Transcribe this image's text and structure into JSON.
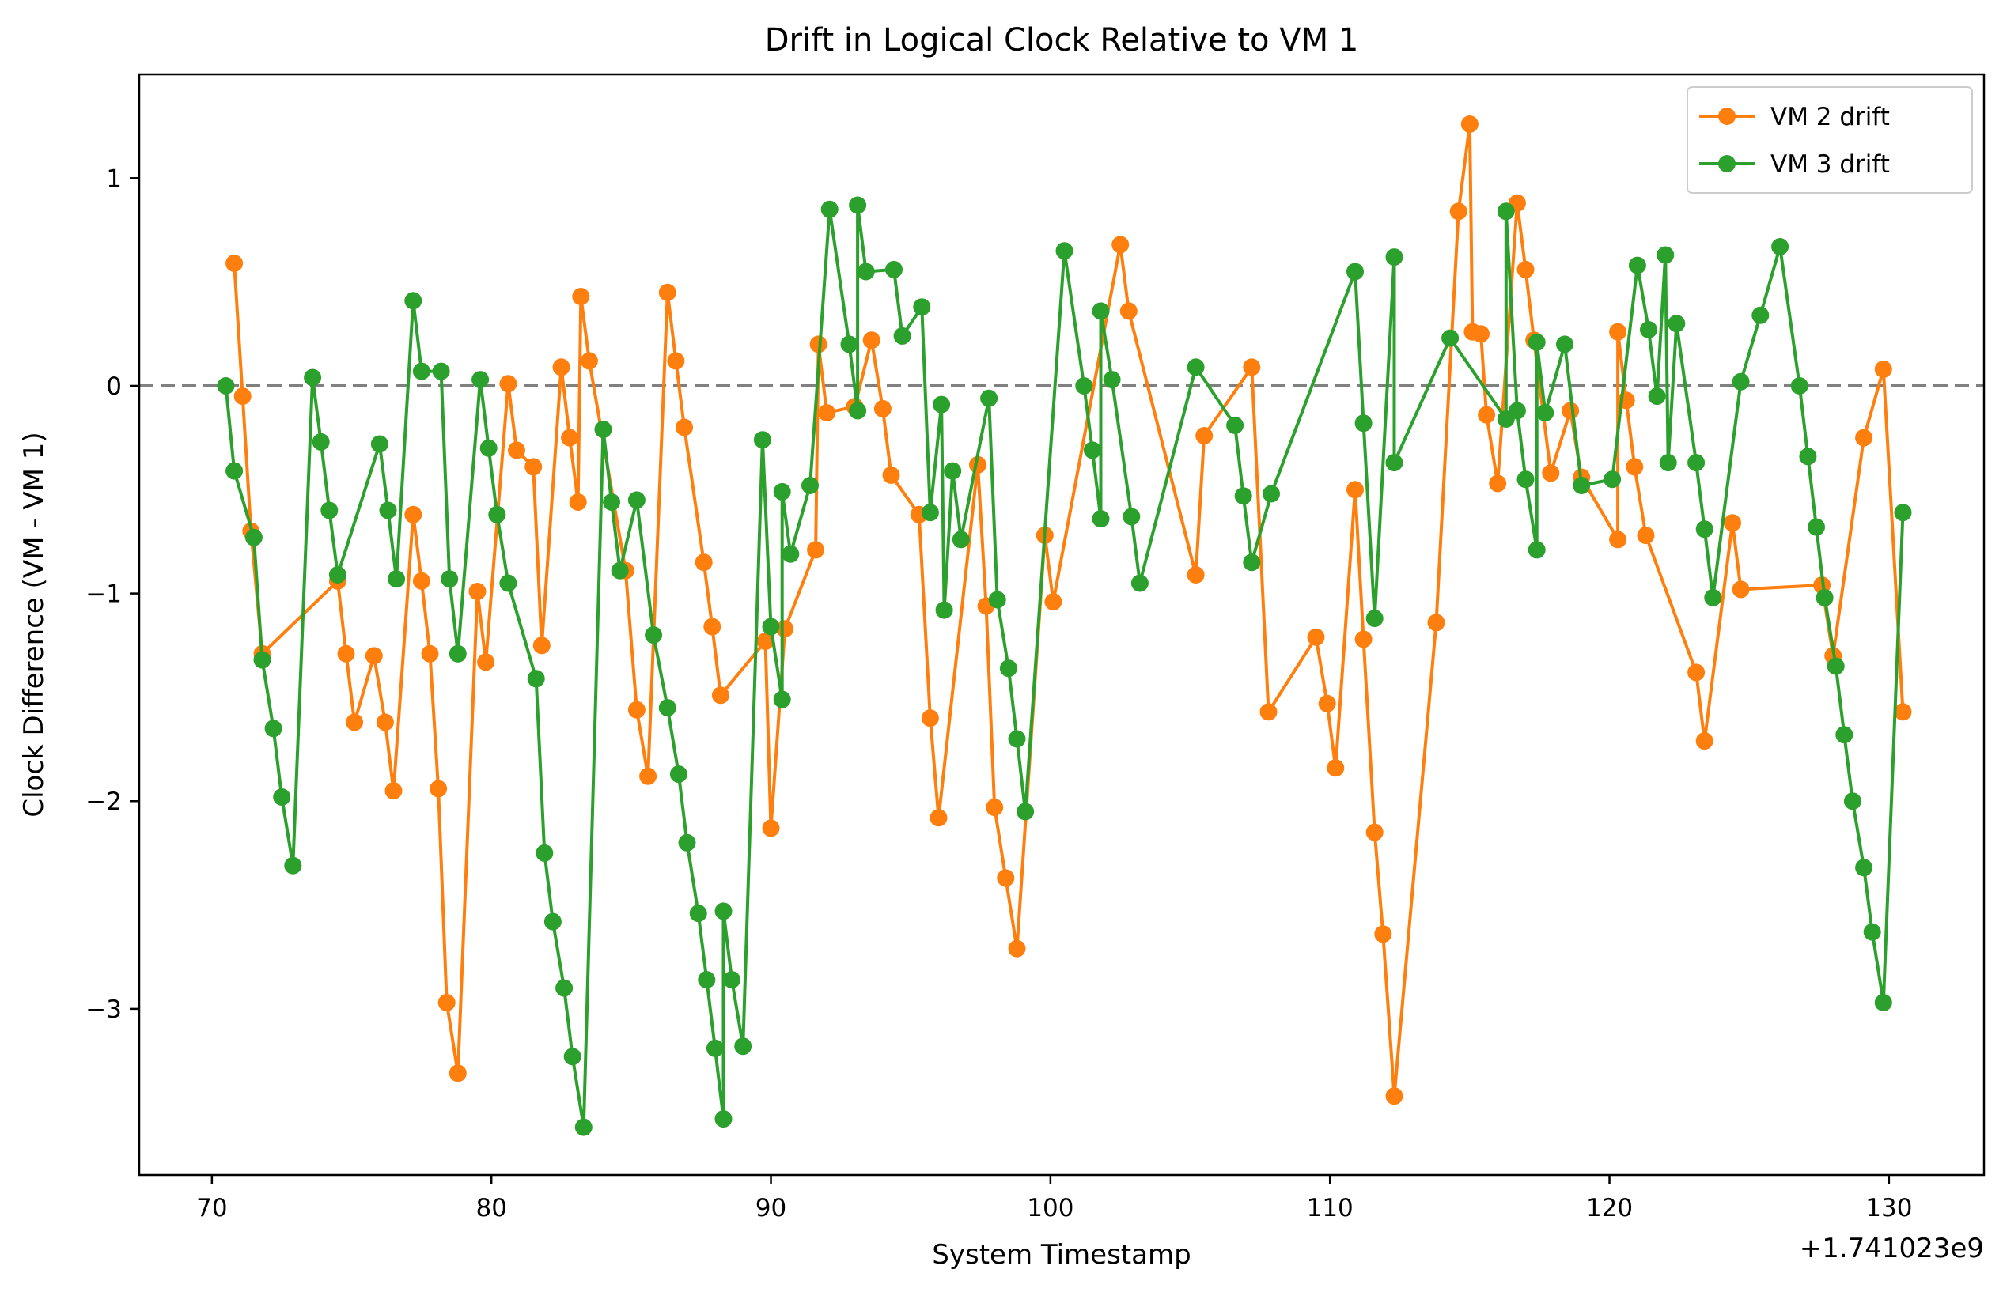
{
  "chart_data": {
    "type": "line",
    "title": "Drift in Logical Clock Relative to VM 1",
    "xlabel": "System Timestamp",
    "ylabel": "Clock Difference (VM - VM 1)",
    "x_offset_label": "+1.741023e9",
    "xlim": [
      67.4,
      133.4
    ],
    "ylim": [
      -3.8,
      1.5
    ],
    "x_ticks": [
      70,
      80,
      90,
      100,
      110,
      120,
      130
    ],
    "x_tick_labels": [
      "70",
      "80",
      "90",
      "100",
      "110",
      "120",
      "130"
    ],
    "y_ticks": [
      -3,
      -2,
      -1,
      0,
      1
    ],
    "y_tick_labels": [
      "−3",
      "−2",
      "−1",
      "0",
      "1"
    ],
    "grid": false,
    "legend_position": "top-right",
    "reference_line": {
      "y": 0,
      "style": "dashed",
      "color": "#808080"
    },
    "series": [
      {
        "name": "VM 2 drift",
        "color": "#ff7f0e",
        "points": [
          [
            70.8,
            0.59
          ],
          [
            71.1,
            -0.05
          ],
          [
            71.4,
            -0.7
          ],
          [
            71.8,
            -1.29
          ],
          [
            74.5,
            -0.94
          ],
          [
            74.8,
            -1.29
          ],
          [
            75.1,
            -1.62
          ],
          [
            75.8,
            -1.3
          ],
          [
            76.2,
            -1.62
          ],
          [
            76.5,
            -1.95
          ],
          [
            77.2,
            -0.62
          ],
          [
            77.5,
            -0.94
          ],
          [
            77.8,
            -1.29
          ],
          [
            78.1,
            -1.94
          ],
          [
            78.4,
            -2.97
          ],
          [
            78.8,
            -3.31
          ],
          [
            79.5,
            -0.99
          ],
          [
            79.8,
            -1.33
          ],
          [
            80.6,
            0.01
          ],
          [
            80.9,
            -0.31
          ],
          [
            81.5,
            -0.39
          ],
          [
            81.8,
            -1.25
          ],
          [
            82.5,
            0.09
          ],
          [
            82.8,
            -0.25
          ],
          [
            83.1,
            -0.56
          ],
          [
            83.2,
            0.43
          ],
          [
            83.5,
            0.12
          ],
          [
            84.8,
            -0.89
          ],
          [
            85.2,
            -1.56
          ],
          [
            85.6,
            -1.88
          ],
          [
            86.3,
            0.45
          ],
          [
            86.6,
            0.12
          ],
          [
            86.9,
            -0.2
          ],
          [
            87.6,
            -0.85
          ],
          [
            87.9,
            -1.16
          ],
          [
            88.2,
            -1.49
          ],
          [
            89.8,
            -1.23
          ],
          [
            90.0,
            -2.13
          ],
          [
            90.5,
            -1.17
          ],
          [
            91.6,
            -0.79
          ],
          [
            91.7,
            0.2
          ],
          [
            92.0,
            -0.13
          ],
          [
            93.0,
            -0.1
          ],
          [
            93.6,
            0.22
          ],
          [
            94.0,
            -0.11
          ],
          [
            94.3,
            -0.43
          ],
          [
            95.3,
            -0.62
          ],
          [
            95.7,
            -1.6
          ],
          [
            96.0,
            -2.08
          ],
          [
            97.4,
            -0.38
          ],
          [
            97.7,
            -1.06
          ],
          [
            98.0,
            -2.03
          ],
          [
            98.4,
            -2.37
          ],
          [
            98.8,
            -2.71
          ],
          [
            99.8,
            -0.72
          ],
          [
            100.1,
            -1.04
          ],
          [
            102.5,
            0.68
          ],
          [
            102.8,
            0.36
          ],
          [
            105.2,
            -0.91
          ],
          [
            105.5,
            -0.24
          ],
          [
            107.2,
            0.09
          ],
          [
            107.8,
            -1.57
          ],
          [
            109.5,
            -1.21
          ],
          [
            109.9,
            -1.53
          ],
          [
            110.2,
            -1.84
          ],
          [
            110.9,
            -0.5
          ],
          [
            111.2,
            -1.22
          ],
          [
            111.6,
            -2.15
          ],
          [
            111.9,
            -2.64
          ],
          [
            112.3,
            -3.42
          ],
          [
            113.8,
            -1.14
          ],
          [
            114.6,
            0.84
          ],
          [
            115.0,
            1.26
          ],
          [
            115.1,
            0.26
          ],
          [
            115.4,
            0.25
          ],
          [
            115.6,
            -0.14
          ],
          [
            116.0,
            -0.47
          ],
          [
            116.7,
            0.88
          ],
          [
            117.0,
            0.56
          ],
          [
            117.3,
            0.22
          ],
          [
            117.9,
            -0.42
          ],
          [
            118.6,
            -0.12
          ],
          [
            119.0,
            -0.44
          ],
          [
            120.3,
            -0.74
          ],
          [
            120.3,
            0.26
          ],
          [
            120.6,
            -0.07
          ],
          [
            120.9,
            -0.39
          ],
          [
            121.3,
            -0.72
          ],
          [
            123.1,
            -1.38
          ],
          [
            123.4,
            -1.71
          ],
          [
            124.4,
            -0.66
          ],
          [
            124.7,
            -0.98
          ],
          [
            127.6,
            -0.96
          ],
          [
            128.0,
            -1.3
          ],
          [
            129.1,
            -0.25
          ],
          [
            129.8,
            0.08
          ],
          [
            130.5,
            -1.57
          ]
        ]
      },
      {
        "name": "VM 3 drift",
        "color": "#2ca02c",
        "points": [
          [
            70.5,
            0.0
          ],
          [
            70.8,
            -0.41
          ],
          [
            71.5,
            -0.73
          ],
          [
            71.8,
            -1.32
          ],
          [
            72.2,
            -1.65
          ],
          [
            72.5,
            -1.98
          ],
          [
            72.9,
            -2.31
          ],
          [
            73.6,
            0.04
          ],
          [
            73.9,
            -0.27
          ],
          [
            74.2,
            -0.6
          ],
          [
            74.5,
            -0.91
          ],
          [
            76.0,
            -0.28
          ],
          [
            76.3,
            -0.6
          ],
          [
            76.6,
            -0.93
          ],
          [
            77.2,
            0.41
          ],
          [
            77.5,
            0.07
          ],
          [
            78.2,
            0.07
          ],
          [
            78.5,
            -0.93
          ],
          [
            78.8,
            -1.29
          ],
          [
            79.6,
            0.03
          ],
          [
            79.9,
            -0.3
          ],
          [
            80.2,
            -0.62
          ],
          [
            80.6,
            -0.95
          ],
          [
            81.6,
            -1.41
          ],
          [
            81.9,
            -2.25
          ],
          [
            82.2,
            -2.58
          ],
          [
            82.6,
            -2.9
          ],
          [
            82.9,
            -3.23
          ],
          [
            83.3,
            -3.57
          ],
          [
            84.0,
            -0.21
          ],
          [
            84.3,
            -0.56
          ],
          [
            84.6,
            -0.89
          ],
          [
            85.2,
            -0.55
          ],
          [
            85.8,
            -1.2
          ],
          [
            86.3,
            -1.55
          ],
          [
            86.7,
            -1.87
          ],
          [
            87.0,
            -2.2
          ],
          [
            87.4,
            -2.54
          ],
          [
            87.7,
            -2.86
          ],
          [
            88.0,
            -3.19
          ],
          [
            88.3,
            -3.53
          ],
          [
            88.3,
            -2.53
          ],
          [
            88.6,
            -2.86
          ],
          [
            89.0,
            -3.18
          ],
          [
            89.7,
            -0.26
          ],
          [
            90.0,
            -1.16
          ],
          [
            90.4,
            -1.51
          ],
          [
            90.4,
            -0.51
          ],
          [
            90.7,
            -0.81
          ],
          [
            91.4,
            -0.48
          ],
          [
            92.1,
            0.85
          ],
          [
            92.8,
            0.2
          ],
          [
            93.1,
            -0.12
          ],
          [
            93.1,
            0.87
          ],
          [
            93.4,
            0.55
          ],
          [
            94.4,
            0.56
          ],
          [
            94.7,
            0.24
          ],
          [
            95.4,
            0.38
          ],
          [
            95.7,
            -0.61
          ],
          [
            96.1,
            -0.09
          ],
          [
            96.2,
            -1.08
          ],
          [
            96.5,
            -0.41
          ],
          [
            96.8,
            -0.74
          ],
          [
            97.8,
            -0.06
          ],
          [
            98.1,
            -1.03
          ],
          [
            98.5,
            -1.36
          ],
          [
            98.8,
            -1.7
          ],
          [
            99.1,
            -2.05
          ],
          [
            100.5,
            0.65
          ],
          [
            101.2,
            0.0
          ],
          [
            101.5,
            -0.31
          ],
          [
            101.8,
            -0.64
          ],
          [
            101.8,
            0.36
          ],
          [
            102.2,
            0.03
          ],
          [
            102.9,
            -0.63
          ],
          [
            103.2,
            -0.95
          ],
          [
            105.2,
            0.09
          ],
          [
            106.6,
            -0.19
          ],
          [
            106.9,
            -0.53
          ],
          [
            107.2,
            -0.85
          ],
          [
            107.9,
            -0.52
          ],
          [
            110.9,
            0.55
          ],
          [
            111.2,
            -0.18
          ],
          [
            111.6,
            -1.12
          ],
          [
            112.3,
            0.62
          ],
          [
            112.3,
            -0.37
          ],
          [
            114.3,
            0.23
          ],
          [
            116.3,
            -0.16
          ],
          [
            116.3,
            0.84
          ],
          [
            116.7,
            -0.12
          ],
          [
            117.0,
            -0.45
          ],
          [
            117.4,
            -0.79
          ],
          [
            117.4,
            0.21
          ],
          [
            117.7,
            -0.13
          ],
          [
            118.4,
            0.2
          ],
          [
            119.0,
            -0.48
          ],
          [
            120.1,
            -0.45
          ],
          [
            121.0,
            0.58
          ],
          [
            121.4,
            0.27
          ],
          [
            121.7,
            -0.05
          ],
          [
            122.0,
            0.63
          ],
          [
            122.1,
            -0.37
          ],
          [
            122.4,
            0.3
          ],
          [
            123.1,
            -0.37
          ],
          [
            123.4,
            -0.69
          ],
          [
            123.7,
            -1.02
          ],
          [
            124.7,
            0.02
          ],
          [
            125.4,
            0.34
          ],
          [
            126.1,
            0.67
          ],
          [
            126.8,
            0.0
          ],
          [
            127.1,
            -0.34
          ],
          [
            127.4,
            -0.68
          ],
          [
            127.7,
            -1.02
          ],
          [
            128.1,
            -1.35
          ],
          [
            128.4,
            -1.68
          ],
          [
            128.7,
            -2.0
          ],
          [
            129.1,
            -2.32
          ],
          [
            129.4,
            -2.63
          ],
          [
            129.8,
            -2.97
          ],
          [
            130.5,
            -0.61
          ]
        ]
      }
    ]
  }
}
